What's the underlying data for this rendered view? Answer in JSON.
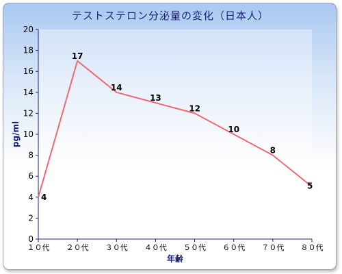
{
  "chart_data": {
    "type": "line",
    "title": "テストステロン分泌量の変化（日本人）",
    "xlabel": "年齢",
    "ylabel": "pg/ml",
    "categories": [
      "１０代",
      "２０代",
      "３０代",
      "４０代",
      "５０代",
      "６０代",
      "７０代",
      "８０代"
    ],
    "series": [
      {
        "values": [
          4,
          17,
          14,
          13,
          12,
          10,
          8,
          5
        ]
      }
    ],
    "ylim": [
      0,
      20
    ],
    "yticks": [
      0,
      2,
      4,
      6,
      8,
      10,
      12,
      14,
      16,
      18,
      20
    ],
    "grid": false,
    "legend": "none",
    "line_color": "#ee6a70",
    "axis_color": "#1b2470"
  }
}
